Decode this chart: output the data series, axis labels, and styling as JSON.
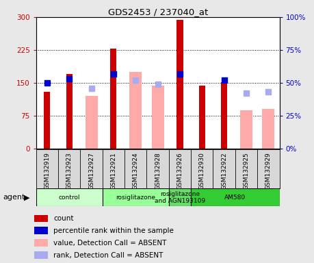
{
  "title": "GDS2453 / 237040_at",
  "samples": [
    "GSM132919",
    "GSM132923",
    "GSM132927",
    "GSM132921",
    "GSM132924",
    "GSM132928",
    "GSM132926",
    "GSM132930",
    "GSM132922",
    "GSM132925",
    "GSM132929"
  ],
  "count_values": [
    130,
    170,
    null,
    228,
    null,
    null,
    293,
    143,
    152,
    null,
    null
  ],
  "percentile_rank": [
    50,
    53,
    null,
    57,
    null,
    null,
    57,
    null,
    52,
    null,
    null
  ],
  "absent_value": [
    null,
    null,
    120,
    null,
    175,
    143,
    null,
    null,
    null,
    87,
    90
  ],
  "absent_rank": [
    null,
    null,
    46,
    null,
    52,
    49,
    null,
    null,
    null,
    42,
    43
  ],
  "groups": [
    {
      "label": "control",
      "start": 0,
      "end": 3,
      "color": "#ccffcc"
    },
    {
      "label": "rosiglitazone",
      "start": 3,
      "end": 6,
      "color": "#99ff99"
    },
    {
      "label": "rosiglitazone\nand AGN193109",
      "start": 6,
      "end": 7,
      "color": "#66dd66"
    },
    {
      "label": "AM580",
      "start": 7,
      "end": 11,
      "color": "#33cc33"
    }
  ],
  "ylim_left": [
    0,
    300
  ],
  "ylim_right": [
    0,
    100
  ],
  "yticks_left": [
    0,
    75,
    150,
    225,
    300
  ],
  "yticks_right": [
    0,
    25,
    50,
    75,
    100
  ],
  "count_color": "#cc0000",
  "rank_color": "#0000cc",
  "absent_value_color": "#ffaaaa",
  "absent_rank_color": "#aaaaee",
  "bg_color": "#e8e8e8",
  "plot_bg": "#ffffff",
  "legend_items": [
    {
      "label": "count",
      "color": "#cc0000"
    },
    {
      "label": "percentile rank within the sample",
      "color": "#0000cc"
    },
    {
      "label": "value, Detection Call = ABSENT",
      "color": "#ffaaaa"
    },
    {
      "label": "rank, Detection Call = ABSENT",
      "color": "#aaaaee"
    }
  ]
}
